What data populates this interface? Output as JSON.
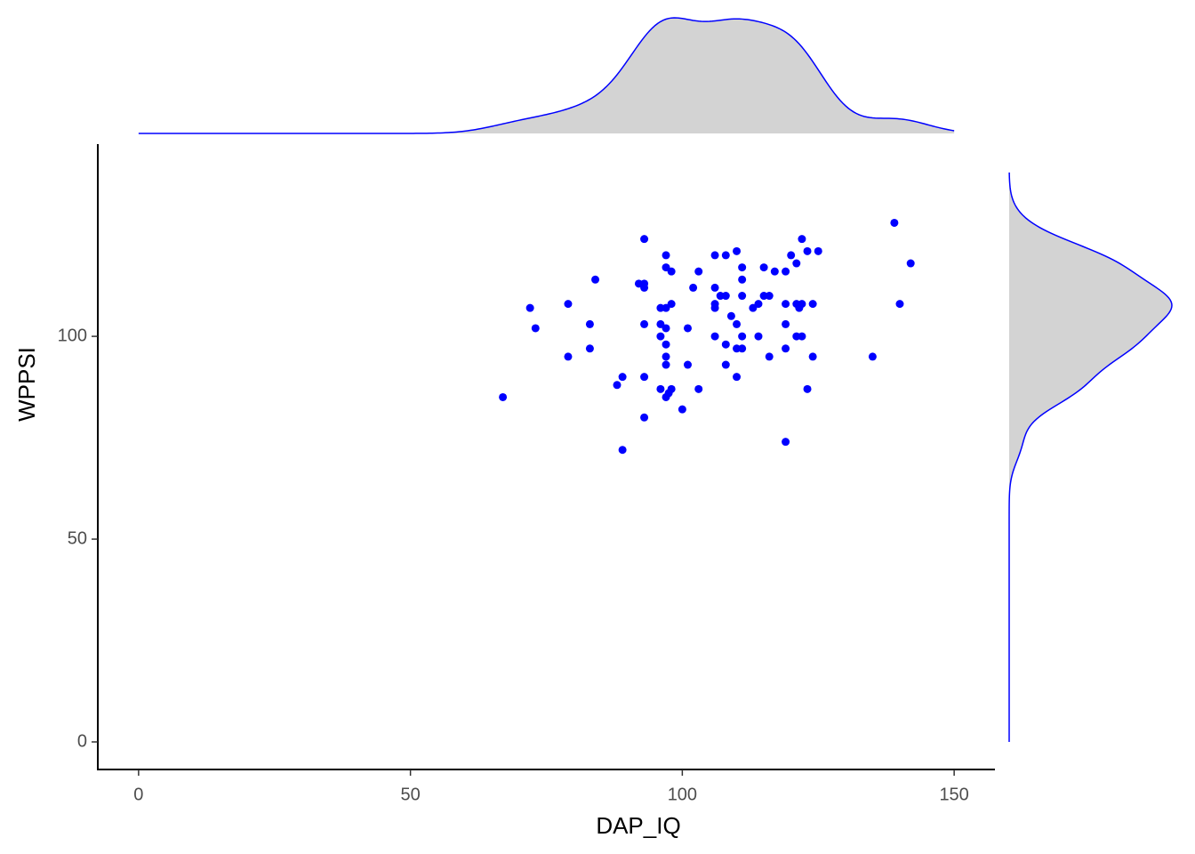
{
  "chart_data": {
    "type": "scatter",
    "x_label": "DAP_IQ",
    "y_label": "WPPSI",
    "x": [
      67,
      72,
      73,
      79,
      79,
      83,
      83,
      84,
      88,
      89,
      89,
      92,
      93,
      93,
      93,
      93,
      93,
      93,
      96,
      96,
      96,
      96,
      97,
      97,
      97,
      97,
      97,
      97,
      97,
      97,
      97.5,
      98,
      98,
      98,
      100,
      101,
      101,
      102,
      103,
      103,
      106,
      106,
      106,
      106,
      106,
      107,
      108,
      108,
      108,
      108,
      109,
      110,
      110,
      110,
      110,
      111,
      111,
      111,
      111,
      111,
      113,
      114,
      114,
      115,
      115,
      116,
      116,
      117,
      119,
      119,
      119,
      119,
      119,
      120,
      121,
      121,
      121,
      121.5,
      122,
      122,
      122,
      123,
      123,
      124,
      124,
      125,
      135,
      139,
      140,
      142
    ],
    "y": [
      85,
      107,
      102,
      108,
      95,
      103,
      97,
      114,
      88,
      90,
      72,
      113,
      124,
      113,
      112,
      103,
      90,
      80,
      107,
      103,
      100,
      87,
      120,
      117,
      107,
      102,
      98,
      95,
      93,
      85,
      86,
      116,
      108,
      87,
      82,
      102,
      93,
      112,
      116,
      87,
      120,
      112,
      108,
      107,
      100,
      110,
      120,
      110,
      98,
      93,
      105,
      121,
      103,
      97,
      90,
      117,
      114,
      110,
      100,
      97,
      107,
      108,
      100,
      117,
      110,
      110,
      95,
      116,
      116,
      108,
      103,
      97,
      74,
      120,
      118,
      108,
      100,
      107,
      124,
      108,
      100,
      87,
      121,
      108,
      95,
      121,
      95,
      128,
      108,
      118
    ],
    "color": "blue",
    "xlim": [
      -7.5,
      157.5
    ],
    "ylim": [
      -6.8,
      147.4
    ],
    "xticks": [
      0,
      50,
      100,
      150
    ],
    "yticks": [
      0,
      50,
      100
    ],
    "marginal": "density",
    "marginal_fill": "#d3d3d3",
    "marginal_color": "blue"
  }
}
